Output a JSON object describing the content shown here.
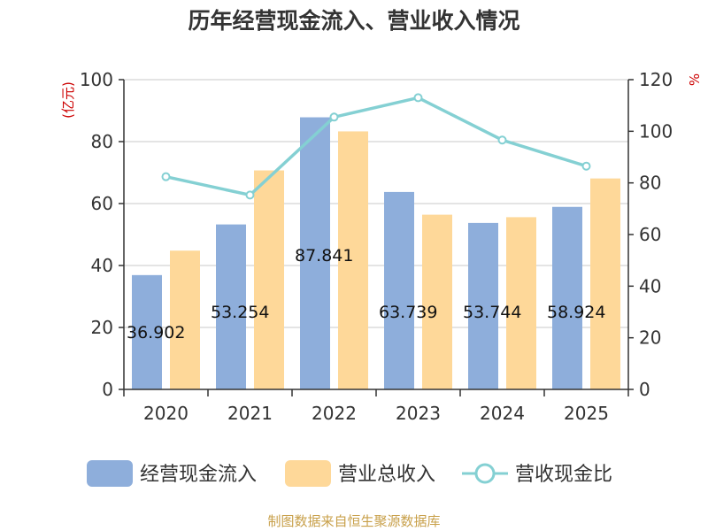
{
  "chart_data": {
    "type": "bar",
    "title": "历年经营现金流入、营业收入情况",
    "categories": [
      "2020",
      "2021",
      "2022",
      "2023",
      "2024",
      "2025"
    ],
    "series": [
      {
        "name": "经营现金流入",
        "kind": "bar",
        "axis": "left",
        "color": "#8eaedb",
        "values": [
          36.902,
          53.254,
          87.841,
          63.739,
          53.744,
          58.924
        ],
        "labels": [
          "36.902",
          "53.254",
          "87.841",
          "63.739",
          "53.744",
          "58.924"
        ]
      },
      {
        "name": "营业总收入",
        "kind": "bar",
        "axis": "left",
        "color": "#fed899",
        "values": [
          44.8,
          70.7,
          83.3,
          56.4,
          55.6,
          68.1
        ]
      },
      {
        "name": "营收现金比",
        "kind": "line",
        "axis": "right",
        "color": "#84d0d3",
        "values": [
          82.4,
          75.3,
          105.5,
          113.0,
          96.6,
          86.5
        ]
      }
    ],
    "y_left": {
      "label": "(亿元)",
      "min": 0,
      "max": 100,
      "ticks": [
        "0",
        "20",
        "40",
        "60",
        "80",
        "100"
      ]
    },
    "y_right": {
      "label": "%",
      "min": 0,
      "max": 120,
      "ticks": [
        "0",
        "20",
        "40",
        "60",
        "80",
        "100",
        "120"
      ]
    },
    "grid": true,
    "legend_position": "bottom"
  },
  "source": "制图数据来自恒生聚源数据库"
}
